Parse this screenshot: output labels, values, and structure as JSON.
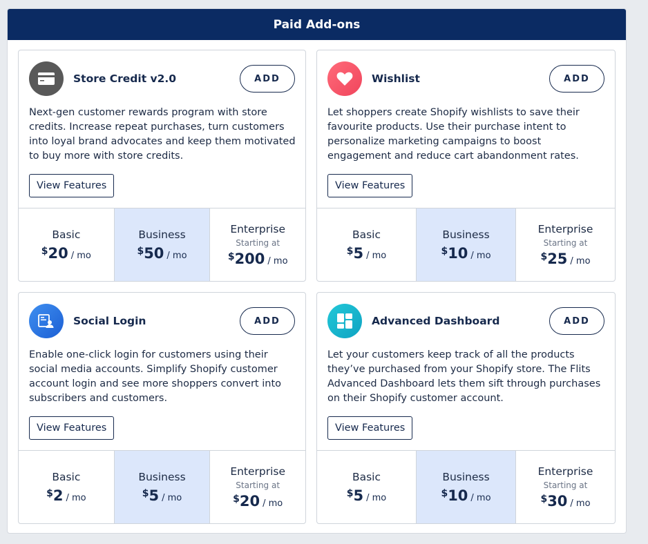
{
  "header": {
    "title": "Paid Add-ons"
  },
  "colors": {
    "header_bg": "#0b2b63",
    "accent": "#16294d",
    "highlight_tier": "#dce7fb"
  },
  "cards": [
    {
      "title": "Store Credit v2.0",
      "icon": "credit-card-icon",
      "add_label": "ADD",
      "description": "Next-gen customer rewards program with store credits. Increase repeat purchases, turn customers into loyal brand advocates and keep them motivated to buy more with store credits.",
      "features_label": "View Features",
      "tiers": [
        {
          "name": "Basic",
          "starting": "",
          "currency": "$",
          "amount": "20",
          "period": "/ mo"
        },
        {
          "name": "Business",
          "starting": "",
          "currency": "$",
          "amount": "50",
          "period": "/ mo"
        },
        {
          "name": "Enterprise",
          "starting": "Starting at",
          "currency": "$",
          "amount": "200",
          "period": "/ mo"
        }
      ]
    },
    {
      "title": "Wishlist",
      "icon": "heart-icon",
      "add_label": "ADD",
      "description": "Let shoppers create Shopify wishlists to save their favourite products. Use their purchase intent to personalize marketing campaigns to boost engagement and reduce cart abandonment rates.",
      "features_label": "View Features",
      "tiers": [
        {
          "name": "Basic",
          "starting": "",
          "currency": "$",
          "amount": "5",
          "period": "/ mo"
        },
        {
          "name": "Business",
          "starting": "",
          "currency": "$",
          "amount": "10",
          "period": "/ mo"
        },
        {
          "name": "Enterprise",
          "starting": "Starting at",
          "currency": "$",
          "amount": "25",
          "period": "/ mo"
        }
      ]
    },
    {
      "title": "Social Login",
      "icon": "social-login-icon",
      "add_label": "ADD",
      "description": "Enable one-click login for customers using their social media accounts. Simplify Shopify customer account login and see more shoppers convert into subscribers and customers.",
      "features_label": "View Features",
      "tiers": [
        {
          "name": "Basic",
          "starting": "",
          "currency": "$",
          "amount": "2",
          "period": "/ mo"
        },
        {
          "name": "Business",
          "starting": "",
          "currency": "$",
          "amount": "5",
          "period": "/ mo"
        },
        {
          "name": "Enterprise",
          "starting": "Starting at",
          "currency": "$",
          "amount": "20",
          "period": "/ mo"
        }
      ]
    },
    {
      "title": "Advanced Dashboard",
      "icon": "dashboard-icon",
      "add_label": "ADD",
      "description": "Let your customers keep track of all the products they’ve purchased from your Shopify store. The Flits Advanced Dashboard lets them sift through purchases on their Shopify customer account.",
      "features_label": "View Features",
      "tiers": [
        {
          "name": "Basic",
          "starting": "",
          "currency": "$",
          "amount": "5",
          "period": "/ mo"
        },
        {
          "name": "Business",
          "starting": "",
          "currency": "$",
          "amount": "10",
          "period": "/ mo"
        },
        {
          "name": "Enterprise",
          "starting": "Starting at",
          "currency": "$",
          "amount": "30",
          "period": "/ mo"
        }
      ]
    }
  ]
}
